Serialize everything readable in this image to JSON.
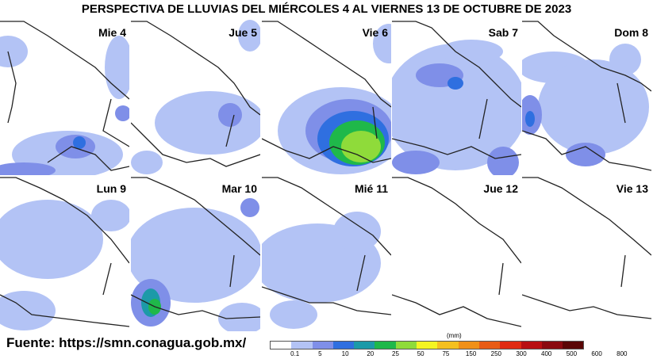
{
  "title": "PERSPECTIVA DE LLUVIAS DEL MIÉRCOLES 4 AL VIERNES 13 DE OCTUBRE DE 2023",
  "panels": [
    {
      "label": "Mie 4"
    },
    {
      "label": "Jue 5"
    },
    {
      "label": "Vie 6"
    },
    {
      "label": "Sab 7"
    },
    {
      "label": "Dom 8"
    },
    {
      "label": "Lun 9"
    },
    {
      "label": "Mar 10"
    },
    {
      "label": "Mié 11"
    },
    {
      "label": "Jue 12"
    },
    {
      "label": "Vie 13"
    }
  ],
  "source": "Fuente: https://smn.conagua.gob.mx/",
  "legend": {
    "unit": "(mm)",
    "ticks": [
      "0.1",
      "5",
      "10",
      "20",
      "25",
      "50",
      "75",
      "150",
      "250",
      "300",
      "400",
      "500",
      "600",
      "800"
    ],
    "colors": [
      "#ffffff",
      "#b3c3f5",
      "#7f8fe8",
      "#2f6fe0",
      "#1c9aa8",
      "#1fb84a",
      "#8fdb3a",
      "#f5f522",
      "#f5c020",
      "#f09018",
      "#e85c16",
      "#e02a12",
      "#b80f12",
      "#8a0a10",
      "#5a0606"
    ]
  }
}
